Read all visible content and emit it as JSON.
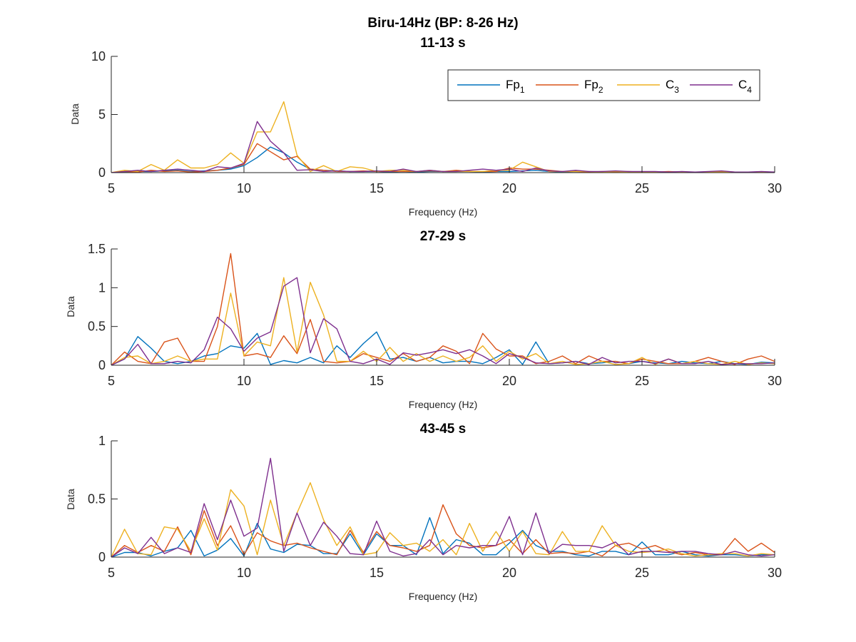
{
  "figure_title": "Biru-14Hz (BP: 8-26 Hz)",
  "colors": {
    "Fp1": "#0072BD",
    "Fp2": "#D95319",
    "C3": "#EDB120",
    "C4": "#7E2F8E",
    "axis": "#262626"
  },
  "legend": [
    {
      "base": "Fp",
      "sub": "1",
      "color": "#0072BD"
    },
    {
      "base": "Fp",
      "sub": "2",
      "color": "#D95319"
    },
    {
      "base": "C",
      "sub": "3",
      "color": "#EDB120"
    },
    {
      "base": "C",
      "sub": "4",
      "color": "#7E2F8E"
    }
  ],
  "chart_data": [
    {
      "type": "line",
      "title": "11-13 s",
      "xlabel": "Frequency (Hz)",
      "ylabel": "Data",
      "xlim": [
        5,
        30
      ],
      "ylim": [
        0,
        10
      ],
      "xticks": [
        5,
        10,
        15,
        20,
        25,
        30
      ],
      "yticks": [
        0,
        5,
        10
      ],
      "legend_position": "top-right",
      "x": [
        5,
        5.5,
        6,
        6.5,
        7,
        7.5,
        8,
        8.5,
        9,
        9.5,
        10,
        10.5,
        11,
        11.5,
        12,
        12.5,
        13,
        13.5,
        14,
        14.5,
        15,
        15.5,
        16,
        16.5,
        17,
        17.5,
        18,
        18.5,
        19,
        19.5,
        20,
        20.5,
        21,
        21.5,
        22,
        22.5,
        23,
        23.5,
        24,
        24.5,
        25,
        25.5,
        26,
        26.5,
        27,
        27.5,
        28,
        28.5,
        29,
        29.5,
        30
      ],
      "series": [
        {
          "name": "Fp1",
          "values": [
            0,
            0.05,
            0.1,
            0.1,
            0.15,
            0.2,
            0.1,
            0.15,
            0.2,
            0.3,
            0.6,
            1.3,
            2.2,
            1.7,
            0.9,
            0.3,
            0.2,
            0.15,
            0.1,
            0.1,
            0.1,
            0.05,
            0.1,
            0.05,
            0.1,
            0.1,
            0.1,
            0.1,
            0.05,
            0.1,
            0.1,
            0.15,
            0.2,
            0.1,
            0.05,
            0.1,
            0.05,
            0.05,
            0.05,
            0.05,
            0.05,
            0.05,
            0.05,
            0.05,
            0.05,
            0.05,
            0.05,
            0.05,
            0.05,
            0.05,
            0.05
          ]
        },
        {
          "name": "Fp2",
          "values": [
            0,
            0.1,
            0.05,
            0.2,
            0.1,
            0.15,
            0.05,
            0.1,
            0.2,
            0.4,
            0.7,
            2.5,
            1.8,
            1.1,
            1.4,
            0.3,
            0.2,
            0.1,
            0.1,
            0.15,
            0.1,
            0.1,
            0.1,
            0.1,
            0.15,
            0.1,
            0.2,
            0.1,
            0.1,
            0.1,
            0.4,
            0.3,
            0.3,
            0.2,
            0.1,
            0.1,
            0.05,
            0.1,
            0.05,
            0.1,
            0.05,
            0.05,
            0.1,
            0.05,
            0.05,
            0.05,
            0.1,
            0.05,
            0.05,
            0.05,
            0.05
          ]
        },
        {
          "name": "C3",
          "values": [
            0,
            0.2,
            0.1,
            0.7,
            0.2,
            1.1,
            0.4,
            0.4,
            0.7,
            1.7,
            0.8,
            3.5,
            3.5,
            6.1,
            1.5,
            0.1,
            0.6,
            0.1,
            0.5,
            0.4,
            0.1,
            0.2,
            0.2,
            0.1,
            0.2,
            0.1,
            0.1,
            0.1,
            0.1,
            0.2,
            0.2,
            0.9,
            0.5,
            0.1,
            0.1,
            0.1,
            0.1,
            0.05,
            0.1,
            0.05,
            0.05,
            0.05,
            0.05,
            0.05,
            0.05,
            0.05,
            0.05,
            0.05,
            0.05,
            0.05,
            0.05
          ]
        },
        {
          "name": "C4",
          "values": [
            0,
            0.1,
            0.2,
            0.1,
            0.2,
            0.3,
            0.2,
            0.1,
            0.5,
            0.4,
            0.8,
            4.4,
            2.7,
            1.7,
            0.2,
            0.25,
            0.1,
            0.15,
            0.1,
            0.1,
            0.15,
            0.1,
            0.3,
            0.1,
            0.2,
            0.1,
            0.1,
            0.2,
            0.3,
            0.2,
            0.3,
            0.1,
            0.4,
            0.15,
            0.1,
            0.2,
            0.1,
            0.1,
            0.15,
            0.1,
            0.1,
            0.1,
            0.05,
            0.1,
            0.05,
            0.1,
            0.15,
            0.05,
            0.05,
            0.1,
            0.05
          ]
        }
      ]
    },
    {
      "type": "line",
      "title": "27-29 s",
      "xlabel": "Frequency (Hz)",
      "ylabel": "Data",
      "xlim": [
        5,
        30
      ],
      "ylim": [
        0,
        1.5
      ],
      "xticks": [
        5,
        10,
        15,
        20,
        25,
        30
      ],
      "yticks": [
        0,
        0.5,
        1,
        1.5
      ],
      "x": [
        5,
        5.5,
        6,
        6.5,
        7,
        7.5,
        8,
        8.5,
        9,
        9.5,
        10,
        10.5,
        11,
        11.5,
        12,
        12.5,
        13,
        13.5,
        14,
        14.5,
        15,
        15.5,
        16,
        16.5,
        17,
        17.5,
        18,
        18.5,
        19,
        19.5,
        20,
        20.5,
        21,
        21.5,
        22,
        22.5,
        23,
        23.5,
        24,
        24.5,
        25,
        25.5,
        26,
        26.5,
        27,
        27.5,
        28,
        28.5,
        29,
        29.5,
        30
      ],
      "series": [
        {
          "name": "Fp1",
          "values": [
            0,
            0.08,
            0.37,
            0.22,
            0.05,
            0.02,
            0.05,
            0.12,
            0.15,
            0.25,
            0.22,
            0.41,
            0.01,
            0.06,
            0.03,
            0.1,
            0.03,
            0.25,
            0.1,
            0.28,
            0.43,
            0.08,
            0.1,
            0.05,
            0.1,
            0.03,
            0.05,
            0.05,
            0.02,
            0.1,
            0.2,
            0.01,
            0.3,
            0.02,
            0.03,
            0.05,
            0.02,
            0.03,
            0.05,
            0.02,
            0.05,
            0.03,
            0.02,
            0.05,
            0.03,
            0.02,
            0.05,
            0.02,
            0.01,
            0.04,
            0.03
          ]
        },
        {
          "name": "Fp2",
          "values": [
            0,
            0.17,
            0.05,
            0.02,
            0.3,
            0.35,
            0.05,
            0.05,
            0.5,
            1.44,
            0.12,
            0.15,
            0.1,
            0.38,
            0.15,
            0.59,
            0.05,
            0.03,
            0.05,
            0.15,
            0.1,
            0.05,
            0.15,
            0.05,
            0.1,
            0.25,
            0.18,
            0.02,
            0.41,
            0.21,
            0.12,
            0.12,
            0.02,
            0.05,
            0.12,
            0.02,
            0.12,
            0.05,
            0.05,
            0.02,
            0.08,
            0.05,
            0.02,
            0.02,
            0.05,
            0.1,
            0.05,
            0.01,
            0.08,
            0.12,
            0.05
          ]
        },
        {
          "name": "C3",
          "values": [
            0,
            0.1,
            0.12,
            0.02,
            0.05,
            0.12,
            0.05,
            0.08,
            0.08,
            0.93,
            0.12,
            0.3,
            0.25,
            1.13,
            0.17,
            1.07,
            0.65,
            0.05,
            0.05,
            0.18,
            0.05,
            0.23,
            0.05,
            0.15,
            0.05,
            0.12,
            0.05,
            0.1,
            0.25,
            0.05,
            0.18,
            0.08,
            0.15,
            0.02,
            0.05,
            0.01,
            0.02,
            0.05,
            0.01,
            0.02,
            0.1,
            0.01,
            0.08,
            0.02,
            0.05,
            0.02,
            0.01,
            0.05,
            0.01,
            0.03,
            0.02
          ]
        },
        {
          "name": "C4",
          "values": [
            0,
            0.08,
            0.27,
            0.02,
            0.02,
            0.05,
            0.03,
            0.2,
            0.62,
            0.47,
            0.18,
            0.35,
            0.43,
            1.02,
            1.13,
            0.16,
            0.6,
            0.47,
            0.05,
            0.02,
            0.08,
            0.01,
            0.16,
            0.13,
            0.16,
            0.2,
            0.15,
            0.2,
            0.12,
            0.02,
            0.15,
            0.1,
            0.03,
            0.02,
            0.03,
            0.05,
            0.01,
            0.1,
            0.03,
            0.05,
            0.05,
            0.02,
            0.08,
            0.02,
            0.02,
            0.05,
            0.01,
            0.02,
            0.02,
            0.02,
            0.03
          ]
        }
      ]
    },
    {
      "type": "line",
      "title": "43-45 s",
      "xlabel": "Frequency (Hz)",
      "ylabel": "Data",
      "xlim": [
        5,
        30
      ],
      "ylim": [
        0,
        1
      ],
      "xticks": [
        5,
        10,
        15,
        20,
        25,
        30
      ],
      "yticks": [
        0,
        0.5,
        1
      ],
      "x": [
        5,
        5.5,
        6,
        6.5,
        7,
        7.5,
        8,
        8.5,
        9,
        9.5,
        10,
        10.5,
        11,
        11.5,
        12,
        12.5,
        13,
        13.5,
        14,
        14.5,
        15,
        15.5,
        16,
        16.5,
        17,
        17.5,
        18,
        18.5,
        19,
        19.5,
        20,
        20.5,
        21,
        21.5,
        22,
        22.5,
        23,
        23.5,
        24,
        24.5,
        25,
        25.5,
        26,
        26.5,
        27,
        27.5,
        28,
        28.5,
        29,
        29.5,
        30
      ],
      "series": [
        {
          "name": "Fp1",
          "values": [
            0,
            0.04,
            0.04,
            0.01,
            0.05,
            0.08,
            0.23,
            0.01,
            0.06,
            0.16,
            0.01,
            0.29,
            0.07,
            0.04,
            0.11,
            0.1,
            0.03,
            0.03,
            0.2,
            0.02,
            0.2,
            0.1,
            0.1,
            0.02,
            0.34,
            0.03,
            0.15,
            0.12,
            0.02,
            0.02,
            0.12,
            0.23,
            0.1,
            0.05,
            0.05,
            0.02,
            0.01,
            0.05,
            0.05,
            0.02,
            0.13,
            0.02,
            0.02,
            0.05,
            0.02,
            0.01,
            0.02,
            0.02,
            0.01,
            0.02,
            0.02
          ]
        },
        {
          "name": "Fp2",
          "values": [
            0,
            0.1,
            0.04,
            0.1,
            0.05,
            0.26,
            0.02,
            0.4,
            0.1,
            0.27,
            0.02,
            0.21,
            0.14,
            0.1,
            0.12,
            0.08,
            0.05,
            0.02,
            0.23,
            0.04,
            0.22,
            0.1,
            0.08,
            0.05,
            0.1,
            0.45,
            0.2,
            0.1,
            0.08,
            0.1,
            0.15,
            0.03,
            0.15,
            0.03,
            0.04,
            0.03,
            0.05,
            0.01,
            0.1,
            0.12,
            0.07,
            0.1,
            0.05,
            0.02,
            0.04,
            0.02,
            0.02,
            0.16,
            0.05,
            0.12,
            0.04
          ]
        },
        {
          "name": "C3",
          "values": [
            0,
            0.24,
            0.03,
            0.02,
            0.26,
            0.24,
            0.05,
            0.33,
            0.06,
            0.58,
            0.44,
            0.02,
            0.49,
            0.1,
            0.38,
            0.64,
            0.32,
            0.1,
            0.26,
            0.02,
            0.04,
            0.21,
            0.1,
            0.12,
            0.05,
            0.15,
            0.02,
            0.29,
            0.05,
            0.22,
            0.05,
            0.22,
            0.03,
            0.02,
            0.22,
            0.05,
            0.05,
            0.27,
            0.1,
            0.05,
            0.04,
            0.05,
            0.07,
            0.03,
            0.01,
            0.02,
            0.03,
            0.03,
            0.01,
            0.03,
            0.02
          ]
        },
        {
          "name": "C4",
          "values": [
            0,
            0.08,
            0.03,
            0.17,
            0.03,
            0.08,
            0.04,
            0.46,
            0.15,
            0.49,
            0.18,
            0.25,
            0.85,
            0.05,
            0.38,
            0.1,
            0.3,
            0.18,
            0.03,
            0.02,
            0.31,
            0.05,
            0.01,
            0.03,
            0.15,
            0.02,
            0.1,
            0.08,
            0.1,
            0.1,
            0.35,
            0.02,
            0.38,
            0.03,
            0.11,
            0.1,
            0.1,
            0.08,
            0.13,
            0.02,
            0.05,
            0.05,
            0.04,
            0.05,
            0.05,
            0.03,
            0.02,
            0.05,
            0.02,
            0.01,
            0.02
          ]
        }
      ]
    }
  ]
}
